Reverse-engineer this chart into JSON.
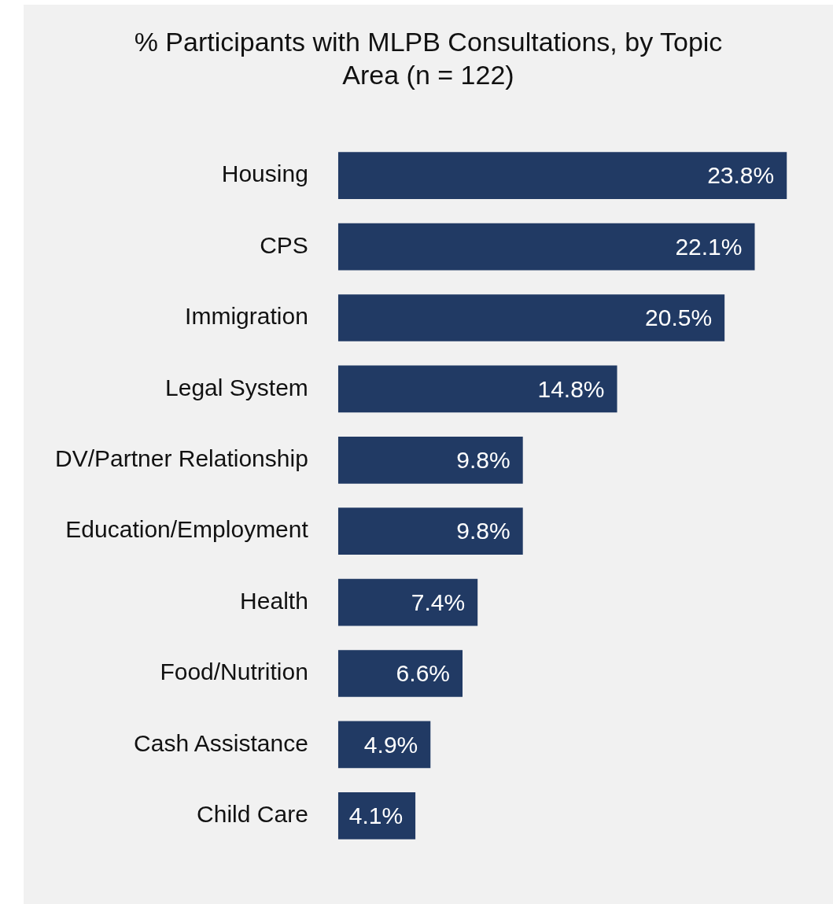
{
  "chart_data": {
    "type": "bar",
    "orientation": "horizontal",
    "title": "% Participants with MLPB Consultations, by Topic Area (n = 122)",
    "categories": [
      "Housing",
      "CPS",
      "Immigration",
      "Legal System",
      "DV/Partner Relationship",
      "Education/Employment",
      "Health",
      "Food/Nutrition",
      "Cash Assistance",
      "Child Care"
    ],
    "values": [
      23.8,
      22.1,
      20.5,
      14.8,
      9.8,
      9.8,
      7.4,
      6.6,
      4.9,
      4.1
    ],
    "value_labels": [
      "23.8%",
      "22.1%",
      "20.5%",
      "14.8%",
      "9.8%",
      "9.8%",
      "7.4%",
      "6.6%",
      "4.9%",
      "4.1%"
    ],
    "color": "#213a64",
    "legend": false
  }
}
